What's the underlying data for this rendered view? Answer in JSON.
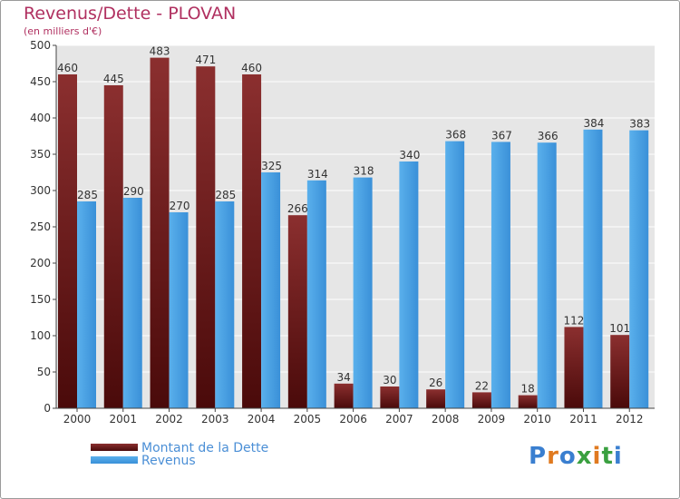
{
  "chart_data": {
    "type": "bar",
    "title": "Revenus/Dette - PLOVAN",
    "subtitle": "(en milliers d'€)",
    "categories": [
      "2000",
      "2001",
      "2002",
      "2003",
      "2004",
      "2005",
      "2006",
      "2007",
      "2008",
      "2009",
      "2010",
      "2011",
      "2012"
    ],
    "series": [
      {
        "name": "Montant de la Dette",
        "color": "#6b1a1a",
        "values": [
          460,
          445,
          483,
          471,
          460,
          266,
          34,
          30,
          26,
          22,
          18,
          112,
          101
        ]
      },
      {
        "name": "Revenus",
        "color": "#4ba3e3",
        "values": [
          285,
          290,
          270,
          285,
          325,
          314,
          318,
          340,
          368,
          367,
          366,
          384,
          383
        ]
      }
    ],
    "ylim": [
      0,
      500
    ],
    "yticks": [
      0,
      50,
      100,
      150,
      200,
      250,
      300,
      350,
      400,
      450,
      500
    ],
    "grid": true,
    "legend_position": "bottom-left"
  },
  "logo": {
    "text": "Proxiti",
    "letter_colors": [
      "#3a7fd0",
      "#e07a20",
      "#3a7fd0",
      "#3aa040",
      "#e07a20",
      "#3aa040",
      "#3a7fd0"
    ]
  }
}
